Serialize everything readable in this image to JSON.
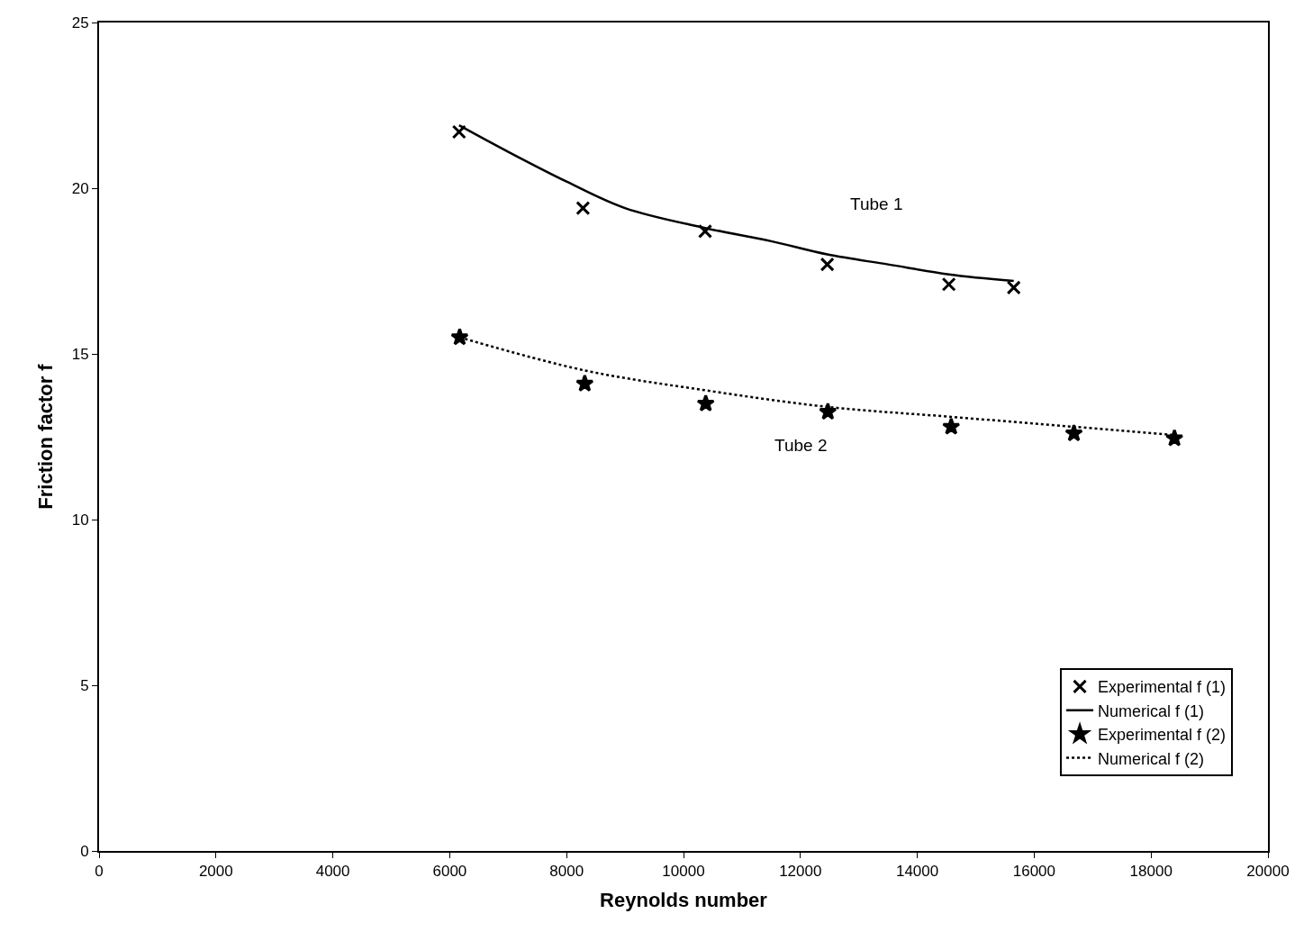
{
  "chart_data": {
    "type": "line",
    "xlabel": "Reynolds number",
    "ylabel": "Friction factor f",
    "xlim": [
      0,
      20000
    ],
    "xticks": [
      0,
      2000,
      4000,
      6000,
      8000,
      10000,
      12000,
      14000,
      16000,
      18000,
      20000
    ],
    "ylim": [
      0,
      25
    ],
    "yticks": [
      0,
      5,
      10,
      15,
      20,
      25
    ],
    "legend": "bottom right",
    "annotations": [
      "Tube 1",
      "Tube 2"
    ],
    "series": [
      {
        "name": "Experimental f (1)",
        "type": "scatter",
        "marker": "cross",
        "color": "#000000",
        "x": [
          6160,
          8280,
          10370,
          12460,
          14540,
          15650
        ],
        "values": [
          21.7,
          19.4,
          18.7,
          17.7,
          17.1,
          17.0
        ]
      },
      {
        "name": "Numerical f (1)",
        "line_style": "solid",
        "color": "#000000",
        "x": [
          6160,
          7000,
          8000,
          9000,
          10370,
          11500,
          12460,
          13500,
          14540,
          15650
        ],
        "values": [
          21.9,
          21.1,
          20.2,
          19.4,
          18.8,
          18.4,
          18.0,
          17.7,
          17.4,
          17.2
        ]
      },
      {
        "name": "Experimental f (2)",
        "type": "scatter",
        "marker": "star",
        "color": "#000000",
        "x": [
          6170,
          8310,
          10380,
          12470,
          14580,
          16680,
          18400
        ],
        "values": [
          15.5,
          14.1,
          13.5,
          13.25,
          12.8,
          12.6,
          12.45
        ]
      },
      {
        "name": "Numerical f (2)",
        "line_style": "dotted",
        "color": "#000000",
        "x": [
          6170,
          8310,
          10380,
          12470,
          14580,
          16680,
          18400
        ],
        "values": [
          15.5,
          14.5,
          13.9,
          13.4,
          13.1,
          12.8,
          12.55
        ]
      }
    ]
  }
}
